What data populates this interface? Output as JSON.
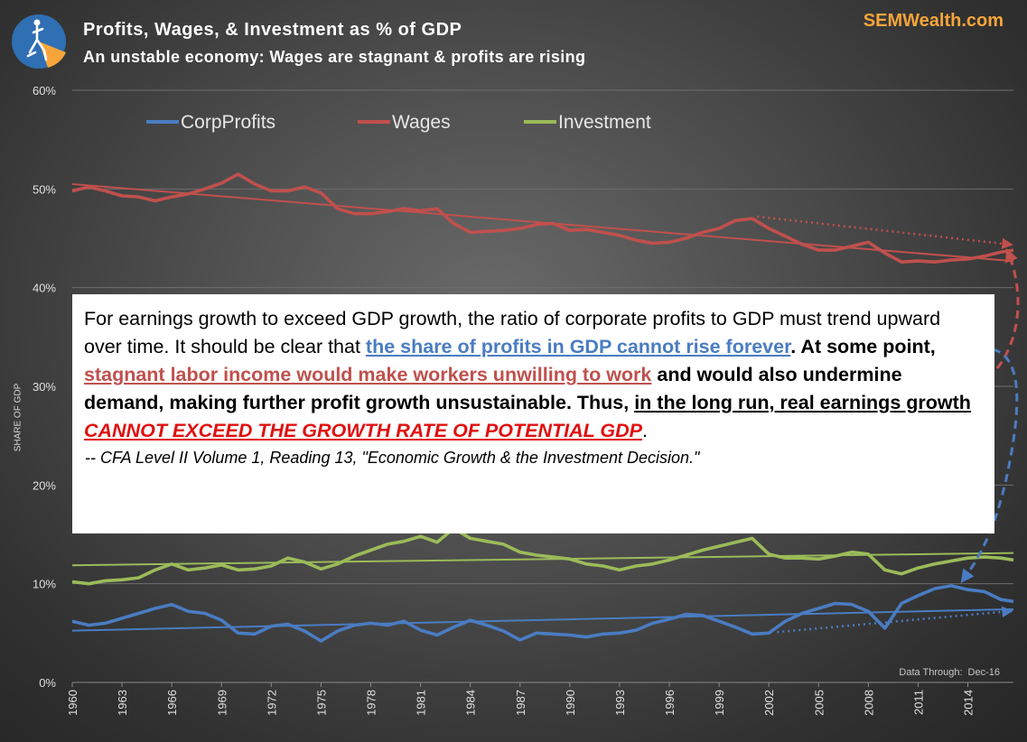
{
  "header": {
    "title": "Profits, Wages, & Investment as  % of GDP",
    "subtitle": "An unstable economy:  Wages are stagnant & profits are rising",
    "brand": "SEMWealth.com"
  },
  "footer": {
    "data_through_label": "Data Through:",
    "data_through_value": "Dec-16"
  },
  "quote": {
    "line_a": "For earnings growth to exceed GDP growth, the ratio of corporate profits to GDP must trend upward over time. It should be clear that ",
    "blue_span": "the share of profits in GDP cannot rise forever",
    "line_b": ". At some point, ",
    "red_span": "stagnant labor income would make workers unwilling to work",
    "line_c": " and would also undermine demand, making further profit growth unsustainable. Thus, ",
    "ul_span": "in the long run, real earnings growth",
    "space": " ",
    "caps_span": "CANNOT EXCEED THE GROWTH RATE OF POTENTIAL GDP",
    "period": ".",
    "citation": "-- CFA Level II Volume 1, Reading 13, \"Economic Growth & the Investment Decision.\""
  },
  "colors": {
    "profits": "#4a7cc2",
    "wages": "#c0504d",
    "investment": "#9bbb59",
    "brand": "#f7a53a"
  },
  "icons": [
    "semwealth-logo-icon"
  ],
  "chart_data": {
    "type": "line",
    "title": "Profits, Wages, & Investment as  % of GDP",
    "subtitle": "An unstable economy:  Wages are stagnant & profits are rising",
    "ylabel": "SHARE OF GDP",
    "xlabel": "",
    "ylim": [
      0,
      60
    ],
    "xlim": [
      1960,
      2016.75
    ],
    "y_ticks": [
      "0%",
      "10%",
      "20%",
      "30%",
      "40%",
      "50%",
      "60%"
    ],
    "y_tick_values": [
      0,
      10,
      20,
      30,
      40,
      50,
      60
    ],
    "x_ticks": [
      "1960",
      "1963",
      "1966",
      "1969",
      "1972",
      "1975",
      "1978",
      "1981",
      "1984",
      "1987",
      "1990",
      "1993",
      "1996",
      "1999",
      "2002",
      "2005",
      "2008",
      "2011",
      "2014"
    ],
    "x_tick_values": [
      1960,
      1963,
      1966,
      1969,
      1972,
      1975,
      1978,
      1981,
      1984,
      1987,
      1990,
      1993,
      1996,
      1999,
      2002,
      2005,
      2008,
      2011,
      2014
    ],
    "grid": true,
    "legend": {
      "placement": "top-left",
      "entries": [
        "CorpProfits",
        "Wages",
        "Investment"
      ]
    },
    "series": [
      {
        "name": "CorpProfits",
        "x": [
          1960,
          1961,
          1962,
          1963,
          1964,
          1965,
          1966,
          1967,
          1968,
          1969,
          1970,
          1971,
          1972,
          1973,
          1974,
          1975,
          1976,
          1977,
          1978,
          1979,
          1980,
          1981,
          1982,
          1983,
          1984,
          1985,
          1986,
          1987,
          1988,
          1989,
          1990,
          1991,
          1992,
          1993,
          1994,
          1995,
          1996,
          1997,
          1998,
          1999,
          2000,
          2001,
          2002,
          2003,
          2004,
          2005,
          2006,
          2007,
          2008,
          2009,
          2010,
          2011,
          2012,
          2013,
          2014,
          2015,
          2016,
          2016.75
        ],
        "values": [
          6.2,
          5.8,
          6.0,
          6.5,
          7.0,
          7.5,
          7.9,
          7.2,
          7.0,
          6.3,
          5.0,
          4.9,
          5.7,
          5.9,
          5.2,
          4.2,
          5.2,
          5.8,
          6.0,
          5.8,
          6.2,
          5.3,
          4.8,
          5.6,
          6.3,
          5.8,
          5.2,
          4.3,
          5.0,
          4.9,
          4.8,
          4.6,
          4.9,
          5.0,
          5.3,
          6.0,
          6.4,
          6.9,
          6.8,
          6.2,
          5.6,
          4.9,
          5.0,
          6.2,
          7.0,
          7.5,
          8.0,
          7.9,
          7.2,
          5.5,
          8.0,
          8.8,
          9.5,
          9.8,
          9.4,
          9.2,
          8.4,
          8.2
        ]
      },
      {
        "name": "Wages",
        "x": [
          1960,
          1961,
          1962,
          1963,
          1964,
          1965,
          1966,
          1967,
          1968,
          1969,
          1970,
          1971,
          1972,
          1973,
          1974,
          1975,
          1976,
          1977,
          1978,
          1979,
          1980,
          1981,
          1982,
          1983,
          1984,
          1985,
          1986,
          1987,
          1988,
          1989,
          1990,
          1991,
          1992,
          1993,
          1994,
          1995,
          1996,
          1997,
          1998,
          1999,
          2000,
          2001,
          2002,
          2003,
          2004,
          2005,
          2006,
          2007,
          2008,
          2009,
          2010,
          2011,
          2012,
          2013,
          2014,
          2015,
          2016,
          2016.75
        ],
        "values": [
          49.8,
          50.2,
          49.8,
          49.3,
          49.2,
          48.8,
          49.2,
          49.5,
          50.0,
          50.6,
          51.5,
          50.5,
          49.8,
          49.8,
          50.2,
          49.6,
          48.0,
          47.5,
          47.5,
          47.7,
          48.0,
          47.8,
          48.0,
          46.5,
          45.6,
          45.7,
          45.8,
          46.0,
          46.4,
          46.5,
          45.8,
          45.9,
          45.6,
          45.3,
          44.8,
          44.5,
          44.6,
          45.0,
          45.6,
          46.0,
          46.8,
          47.0,
          46.0,
          45.2,
          44.4,
          43.8,
          43.8,
          44.2,
          44.6,
          43.5,
          42.6,
          42.7,
          42.6,
          42.8,
          42.9,
          43.2,
          43.6,
          43.8
        ]
      },
      {
        "name": "Investment",
        "x": [
          1960,
          1961,
          1962,
          1963,
          1964,
          1965,
          1966,
          1967,
          1968,
          1969,
          1970,
          1971,
          1972,
          1973,
          1974,
          1975,
          1976,
          1977,
          1978,
          1979,
          1980,
          1981,
          1982,
          1983,
          1984,
          1985,
          1986,
          1987,
          1988,
          1989,
          1990,
          1991,
          1992,
          1993,
          1994,
          1995,
          1996,
          1997,
          1998,
          1999,
          2000,
          2001,
          2002,
          2003,
          2004,
          2005,
          2006,
          2007,
          2008,
          2009,
          2010,
          2011,
          2012,
          2013,
          2014,
          2015,
          2016,
          2016.75
        ],
        "values": [
          10.2,
          10.0,
          10.3,
          10.4,
          10.6,
          11.4,
          12.0,
          11.4,
          11.6,
          11.9,
          11.4,
          11.5,
          11.8,
          12.6,
          12.2,
          11.5,
          12.0,
          12.8,
          13.4,
          14.0,
          14.3,
          14.8,
          14.2,
          15.6,
          14.6,
          14.3,
          14.0,
          13.2,
          12.9,
          12.7,
          12.5,
          12.0,
          11.8,
          11.4,
          11.8,
          12.0,
          12.4,
          12.9,
          13.4,
          13.8,
          14.2,
          14.6,
          13.0,
          12.6,
          12.6,
          12.5,
          12.8,
          13.2,
          13.0,
          11.4,
          11.0,
          11.6,
          12.0,
          12.3,
          12.6,
          12.7,
          12.6,
          12.4
        ]
      }
    ]
  }
}
